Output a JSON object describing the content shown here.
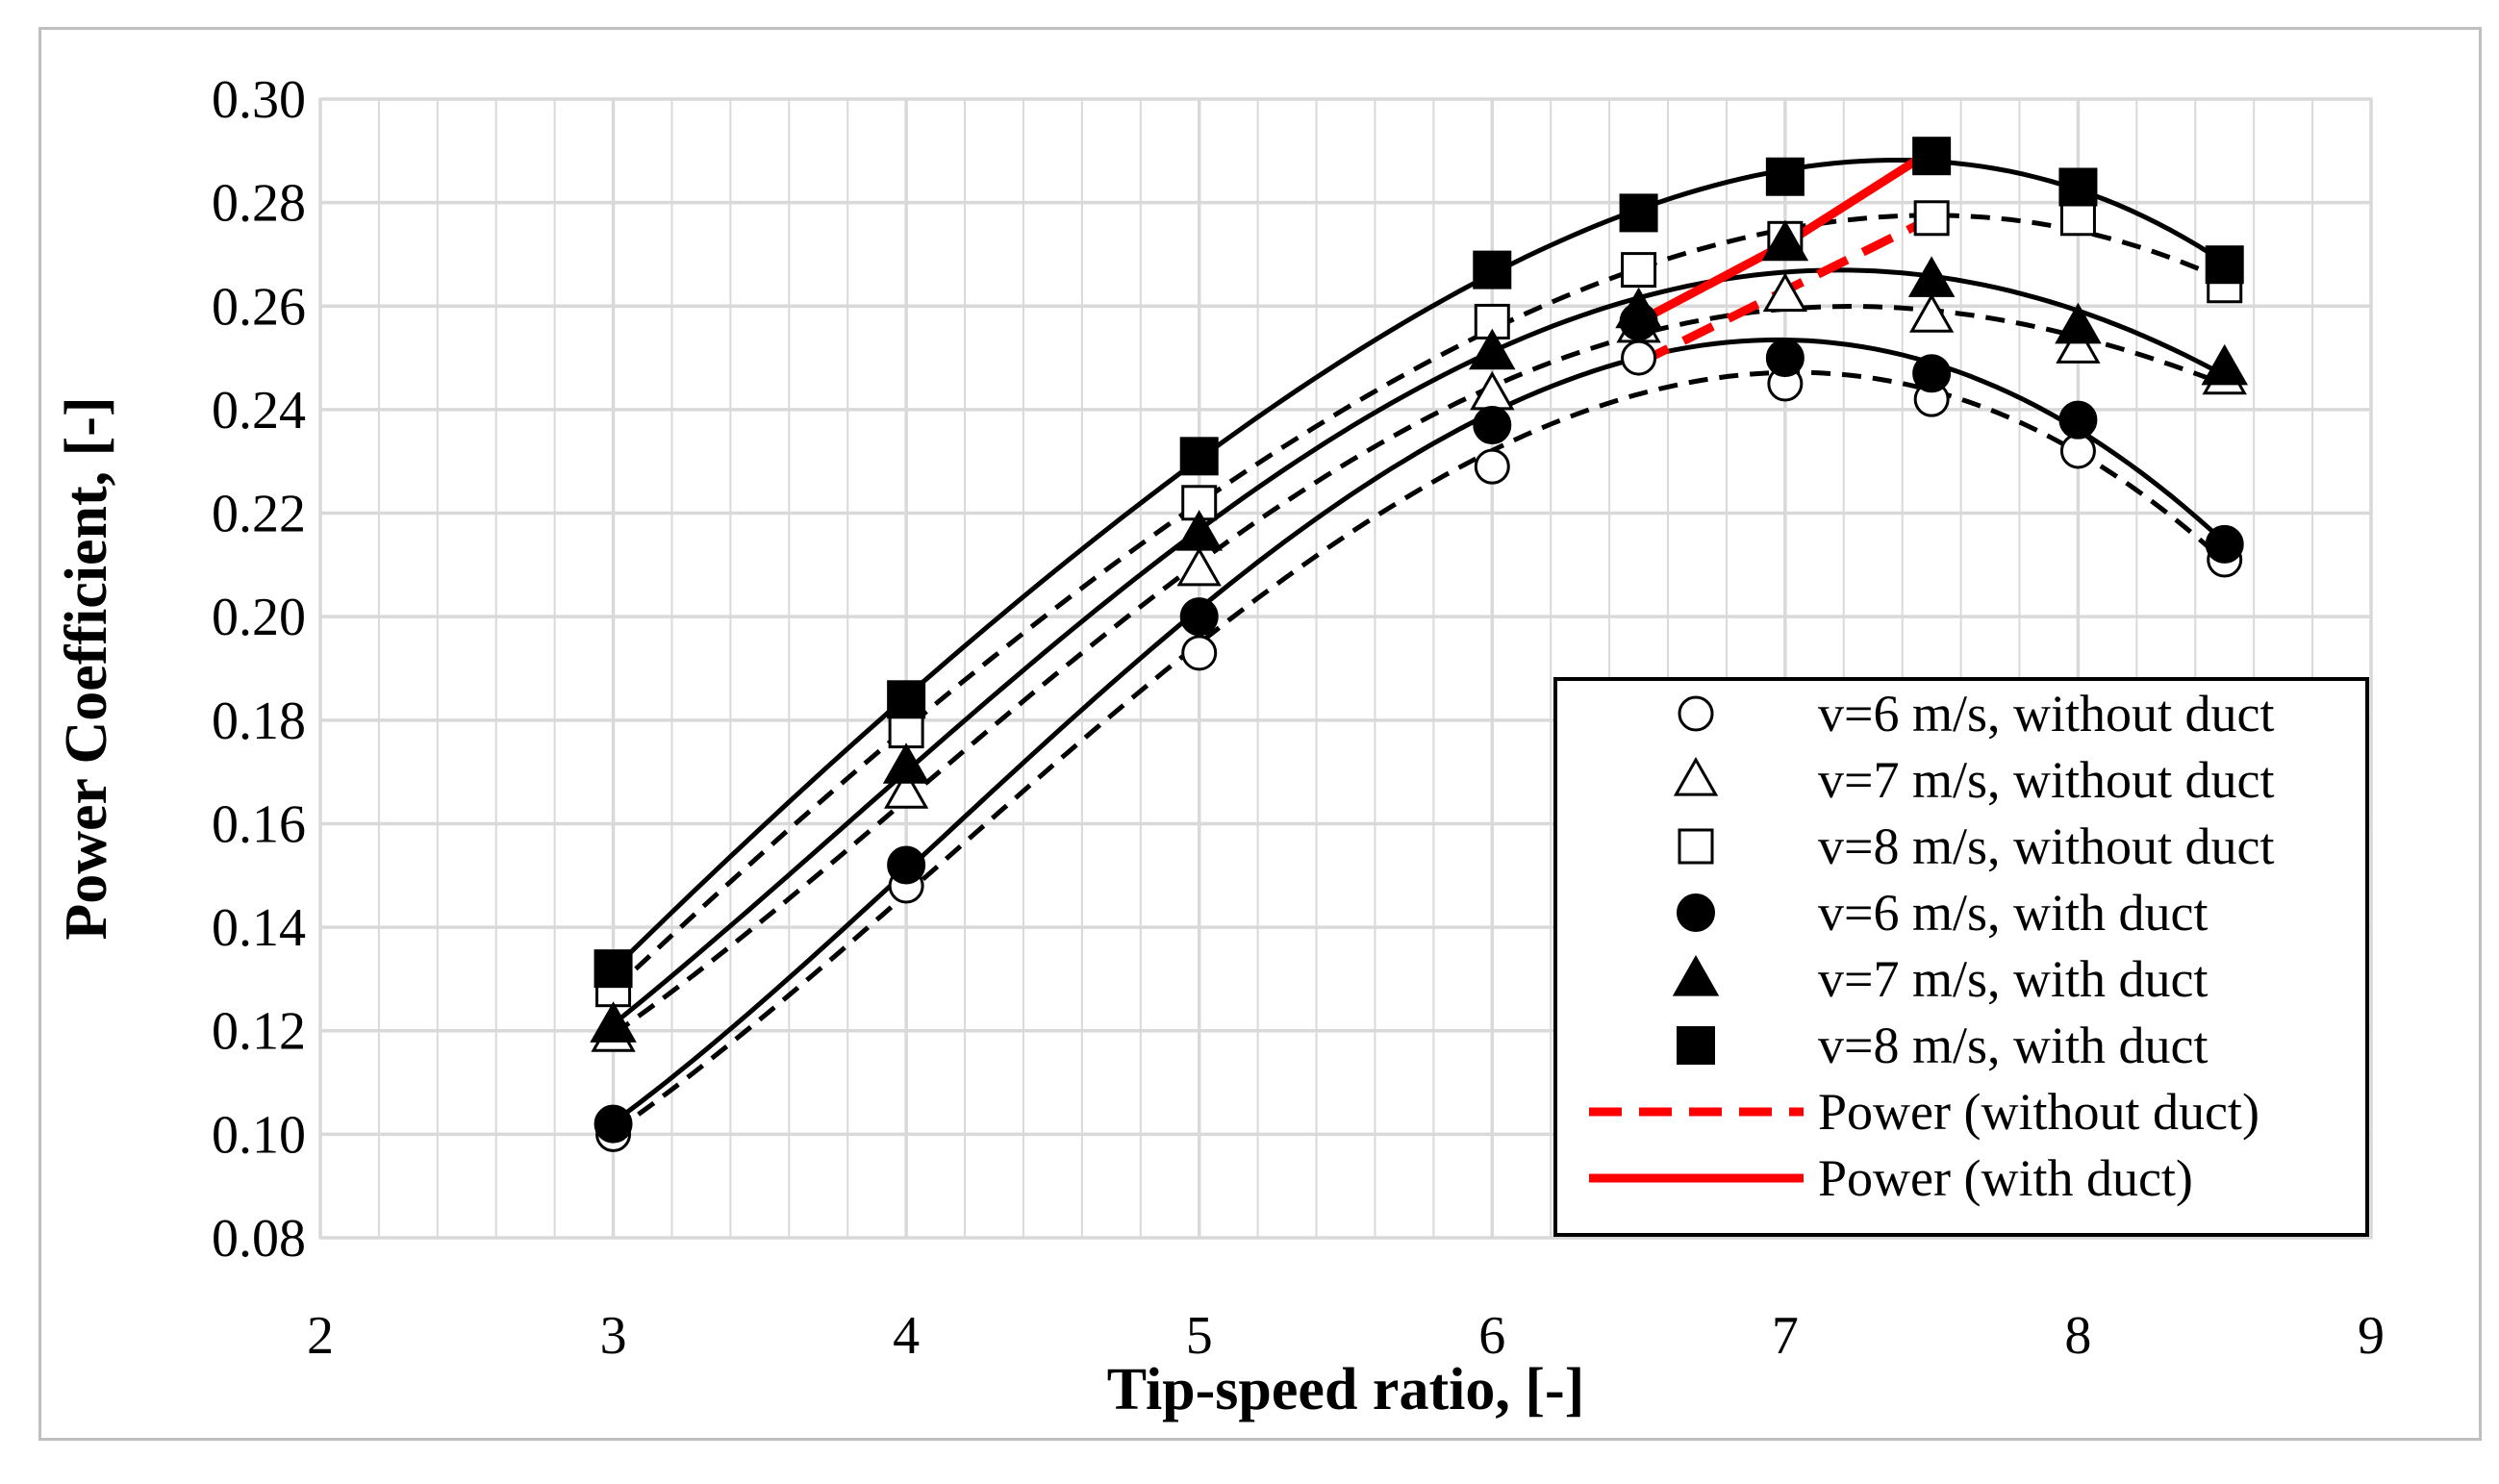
{
  "chart_data": {
    "type": "scatter",
    "title": "",
    "xlabel": "Tip-speed ratio, [-]",
    "ylabel": "Power Coefficient, [-]",
    "xlim": [
      2,
      9
    ],
    "ylim": [
      0.08,
      0.3
    ],
    "x_ticks": [
      2,
      3,
      4,
      5,
      6,
      7,
      8,
      9
    ],
    "y_ticks": [
      0.08,
      0.1,
      0.12,
      0.14,
      0.16,
      0.18,
      0.2,
      0.22,
      0.24,
      0.26,
      0.28,
      0.3
    ],
    "y_tick_labels": [
      "0.08",
      "0.10",
      "0.12",
      "0.14",
      "0.16",
      "0.18",
      "0.20",
      "0.22",
      "0.24",
      "0.26",
      "0.28",
      "0.30"
    ],
    "grid": true,
    "legend_position": "bottom-right",
    "series": [
      {
        "name": "v=6 m/s, without duct",
        "marker": "circle-open",
        "trend": "dashed",
        "x": [
          3,
          4,
          5,
          6,
          6.5,
          7,
          7.5,
          8,
          8.5
        ],
        "y": [
          0.1,
          0.148,
          0.193,
          0.229,
          0.25,
          0.245,
          0.242,
          0.232,
          0.211
        ]
      },
      {
        "name": "v=7 m/s, without duct",
        "marker": "triangle-open",
        "trend": "dashed",
        "x": [
          3,
          4,
          5,
          6,
          6.5,
          7,
          7.5,
          8,
          8.5
        ],
        "y": [
          0.119,
          0.166,
          0.209,
          0.243,
          0.256,
          0.262,
          0.258,
          0.252,
          0.246
        ]
      },
      {
        "name": "v=8 m/s, without duct",
        "marker": "square-open",
        "trend": "dashed",
        "x": [
          3,
          4,
          5,
          6,
          6.5,
          7,
          7.5,
          8,
          8.5
        ],
        "y": [
          0.128,
          0.178,
          0.222,
          0.257,
          0.267,
          0.273,
          0.277,
          0.277,
          0.264
        ]
      },
      {
        "name": "v=6 m/s, with duct",
        "marker": "circle-filled",
        "trend": "solid",
        "x": [
          3,
          4,
          5,
          6,
          6.5,
          7,
          7.5,
          8,
          8.5
        ],
        "y": [
          0.102,
          0.152,
          0.2,
          0.237,
          0.257,
          0.25,
          0.247,
          0.238,
          0.214
        ]
      },
      {
        "name": "v=7 m/s, with duct",
        "marker": "triangle-filled",
        "trend": "solid",
        "x": [
          3,
          4,
          5,
          6,
          6.5,
          7,
          7.5,
          8,
          8.5
        ],
        "y": [
          0.121,
          0.171,
          0.216,
          0.251,
          0.259,
          0.272,
          0.265,
          0.256,
          0.248
        ]
      },
      {
        "name": "v=8 m/s, with duct",
        "marker": "square-filled",
        "trend": "solid",
        "x": [
          3,
          4,
          5,
          6,
          6.5,
          7,
          7.5,
          8,
          8.5
        ],
        "y": [
          0.132,
          0.184,
          0.231,
          0.267,
          0.278,
          0.285,
          0.289,
          0.283,
          0.268
        ]
      }
    ],
    "power_lines": [
      {
        "name": "Power (without duct)",
        "style": "dashed",
        "color": "#ff0000",
        "x": [
          6.5,
          7,
          7.5
        ],
        "y": [
          0.249,
          0.263,
          0.277
        ]
      },
      {
        "name": "Power (with duct)",
        "style": "solid",
        "color": "#ff0000",
        "x": [
          6.5,
          7,
          7.5
        ],
        "y": [
          0.257,
          0.272,
          0.29
        ]
      }
    ],
    "colors": {
      "marker": "#000000",
      "grid": "#d9d9d9",
      "frame": "#bfbfbf",
      "power": "#ff0000"
    }
  }
}
